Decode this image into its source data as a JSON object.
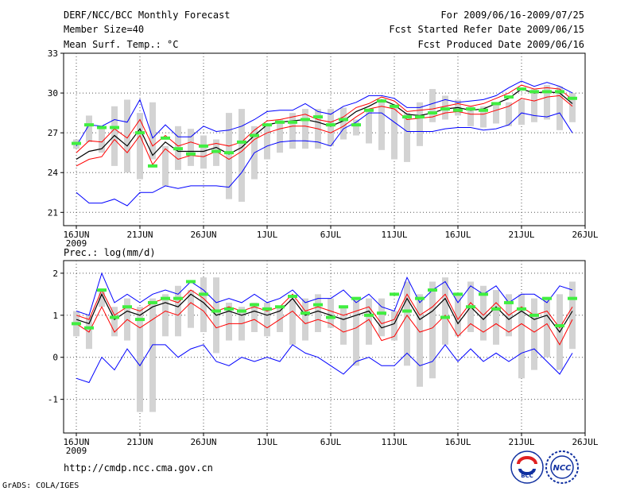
{
  "header": {
    "title": "DERF/NCC/BCC Monthly Forecast",
    "member_size": "Member Size=40",
    "variable": "Mean Surf. Temp.: °C",
    "period": "For 2009/06/16-2009/07/25",
    "fcst_started": "Fcst Started Refer Date 2009/06/15",
    "fcst_produced": "Fcst Produced Date 2009/06/16"
  },
  "footer": {
    "url": "http://cmdp.ncc.cma.gov.cn",
    "grads": "GrADS: COLA/IGES",
    "logo_bcc": "BCC",
    "logo_ncc": "NCC"
  },
  "colors": {
    "box": "#d3d3d3",
    "mean": "#000000",
    "inner": "#ff0000",
    "outer": "#0000ff",
    "obs": "#40ee40",
    "grid": "#555555"
  },
  "chart_data": [
    {
      "type": "line",
      "title": "Mean Surf. Temp.: °C",
      "x_tick_labels": [
        "16JUN",
        "21JUN",
        "26JUN",
        "1JUL",
        "6JUL",
        "11JUL",
        "16JUL",
        "21JUL",
        "26JUL"
      ],
      "x_year_label": "2009",
      "y_ticks": [
        21,
        24,
        27,
        30,
        33
      ],
      "ylim": [
        20,
        33
      ],
      "days": 40,
      "series": [
        {
          "name": "box_low",
          "values": [
            25.8,
            26.3,
            25.5,
            24.5,
            24.0,
            23.5,
            25.0,
            23.0,
            24.2,
            24.5,
            24.3,
            24.5,
            22.0,
            21.8,
            23.5,
            25.0,
            25.5,
            25.8,
            25.8,
            25.8,
            26.0,
            26.5,
            26.8,
            26.2,
            25.7,
            25.0,
            24.8,
            26.0,
            27.8,
            28.0,
            28.3,
            27.5,
            27.4,
            27.7,
            27.5,
            27.6,
            27.8,
            28.0,
            27.2,
            27.8
          ]
        },
        {
          "name": "box_high",
          "values": [
            26.5,
            28.3,
            27.5,
            29.0,
            29.5,
            28.5,
            29.3,
            26.0,
            27.5,
            27.3,
            26.8,
            26.5,
            28.5,
            28.8,
            27.5,
            27.5,
            28.0,
            28.5,
            28.8,
            28.8,
            28.8,
            28.9,
            28.0,
            28.8,
            29.3,
            29.0,
            28.5,
            29.3,
            30.3,
            29.8,
            29.5,
            29.0,
            29.0,
            29.3,
            29.3,
            29.5,
            30.3,
            30.6,
            30.5,
            30.0
          ]
        },
        {
          "name": "outer_low",
          "values": [
            22.5,
            21.7,
            21.7,
            22.0,
            21.5,
            22.5,
            22.5,
            23.0,
            22.8,
            23.0,
            23.0,
            23.0,
            22.9,
            24.0,
            25.5,
            26.0,
            26.3,
            26.4,
            26.4,
            26.3,
            26.0,
            27.3,
            27.8,
            28.5,
            28.5,
            27.8,
            27.1,
            27.1,
            27.1,
            27.3,
            27.4,
            27.4,
            27.2,
            27.3,
            27.6,
            28.5,
            28.3,
            28.2,
            28.5,
            27.0
          ]
        },
        {
          "name": "inner_low",
          "values": [
            24.5,
            25.0,
            25.2,
            26.5,
            25.5,
            26.8,
            24.6,
            25.8,
            25.0,
            25.3,
            25.2,
            25.6,
            25.0,
            25.6,
            26.5,
            27.0,
            27.3,
            27.5,
            27.5,
            27.3,
            27.0,
            27.5,
            28.2,
            28.8,
            29.0,
            28.8,
            28.0,
            28.1,
            28.2,
            28.5,
            28.6,
            28.4,
            28.4,
            28.7,
            29.0,
            29.6,
            29.4,
            29.7,
            29.8,
            29.0
          ]
        },
        {
          "name": "mean",
          "values": [
            25.0,
            25.6,
            25.8,
            26.8,
            26.0,
            27.3,
            25.3,
            26.3,
            25.6,
            25.6,
            25.6,
            25.9,
            25.4,
            25.9,
            26.8,
            27.6,
            27.8,
            27.9,
            28.0,
            27.8,
            27.5,
            27.9,
            28.6,
            29.0,
            29.5,
            29.1,
            28.4,
            28.3,
            28.5,
            28.8,
            28.9,
            28.7,
            28.8,
            29.2,
            29.6,
            30.3,
            30.0,
            30.1,
            30.0,
            29.2
          ]
        },
        {
          "name": "inner_high",
          "values": [
            25.5,
            26.4,
            26.3,
            27.3,
            26.6,
            28.0,
            26.0,
            26.8,
            26.0,
            26.3,
            26.0,
            26.2,
            26.0,
            26.3,
            27.2,
            27.9,
            28.0,
            28.2,
            28.4,
            28.0,
            27.8,
            28.2,
            28.9,
            29.2,
            29.7,
            29.4,
            28.6,
            28.7,
            28.8,
            29.0,
            29.2,
            29.0,
            29.2,
            29.6,
            30.0,
            30.6,
            30.3,
            30.4,
            30.3,
            29.5
          ]
        },
        {
          "name": "outer_high",
          "values": [
            26.0,
            27.6,
            27.5,
            28.0,
            27.8,
            29.5,
            26.6,
            27.6,
            26.7,
            26.7,
            27.5,
            27.1,
            27.2,
            27.5,
            28.0,
            28.6,
            28.7,
            28.7,
            29.2,
            28.6,
            28.4,
            29.0,
            29.3,
            29.8,
            29.8,
            29.6,
            28.9,
            28.9,
            29.2,
            29.5,
            29.3,
            29.4,
            29.5,
            29.8,
            30.4,
            30.9,
            30.5,
            30.8,
            30.5,
            30.0
          ]
        },
        {
          "name": "obs",
          "values": [
            26.2,
            27.6,
            27.4,
            27.4,
            null,
            27.0,
            24.5,
            26.6,
            25.8,
            25.4,
            26.0,
            25.6,
            25.5,
            26.3,
            26.8,
            27.6,
            27.8,
            27.8,
            28.0,
            28.2,
            27.6,
            28.0,
            27.6,
            28.7,
            29.4,
            29.0,
            28.2,
            28.2,
            28.5,
            28.8,
            28.7,
            28.8,
            28.7,
            29.2,
            29.7,
            30.3,
            30.1,
            30.1,
            30.1,
            29.6
          ]
        }
      ]
    },
    {
      "type": "line",
      "title": "Prec.: log(mm/d)",
      "x_tick_labels": [
        "16JUN",
        "21JUN",
        "26JUN",
        "1JUL",
        "6JUL",
        "11JUL",
        "16JUL",
        "21JUL",
        "26JUL"
      ],
      "x_year_label": "2009",
      "y_ticks": [
        -1,
        0,
        1,
        2
      ],
      "ylim": [
        -1.8,
        2.3
      ],
      "days": 40,
      "series": [
        {
          "name": "box_low",
          "values": [
            0.5,
            0.2,
            1.2,
            0.5,
            0.4,
            -1.3,
            -1.3,
            0.5,
            0.5,
            0.7,
            0.6,
            0.1,
            0.4,
            0.4,
            0.6,
            0.5,
            0.6,
            0.3,
            0.4,
            0.6,
            0.7,
            0.3,
            -0.2,
            0.3,
            0.5,
            0.4,
            -0.2,
            -0.7,
            -0.5,
            0.3,
            0.5,
            0.6,
            0.4,
            0.3,
            0.5,
            -0.5,
            -0.3,
            0.0,
            -0.3,
            0.2
          ]
        },
        {
          "name": "box_high",
          "values": [
            1.1,
            1.0,
            1.6,
            1.2,
            1.4,
            1.2,
            1.4,
            1.5,
            1.7,
            1.6,
            1.9,
            1.9,
            1.3,
            1.2,
            1.3,
            1.3,
            1.2,
            1.4,
            1.4,
            1.5,
            1.4,
            1.2,
            1.4,
            1.4,
            1.4,
            1.1,
            1.8,
            1.5,
            1.8,
            1.9,
            1.5,
            1.8,
            1.7,
            1.6,
            1.5,
            1.5,
            1.4,
            1.4,
            1.5,
            1.8
          ]
        },
        {
          "name": "outer_low",
          "values": [
            -0.5,
            -0.6,
            0.0,
            -0.3,
            0.2,
            -0.2,
            0.3,
            0.3,
            0.0,
            0.2,
            0.3,
            -0.1,
            -0.2,
            0.0,
            -0.1,
            0.0,
            -0.1,
            0.3,
            0.1,
            0.0,
            -0.2,
            -0.4,
            -0.1,
            0.0,
            -0.2,
            -0.2,
            0.1,
            -0.2,
            -0.1,
            0.3,
            -0.1,
            0.2,
            -0.1,
            0.1,
            -0.1,
            0.1,
            0.2,
            -0.1,
            -0.4,
            0.1
          ]
        },
        {
          "name": "inner_low",
          "values": [
            0.8,
            0.6,
            1.2,
            0.6,
            0.9,
            0.7,
            0.9,
            1.1,
            1.0,
            1.3,
            1.1,
            0.7,
            0.8,
            0.8,
            0.9,
            0.7,
            0.9,
            1.1,
            0.8,
            0.9,
            0.8,
            0.6,
            0.7,
            0.9,
            0.4,
            0.5,
            1.0,
            0.6,
            0.7,
            1.0,
            0.5,
            0.8,
            0.6,
            0.8,
            0.6,
            0.8,
            0.6,
            0.8,
            0.3,
            0.9
          ]
        },
        {
          "name": "mean",
          "values": [
            0.9,
            0.8,
            1.5,
            0.9,
            1.1,
            1.0,
            1.2,
            1.3,
            1.2,
            1.5,
            1.3,
            1.0,
            1.1,
            1.0,
            1.1,
            1.0,
            1.1,
            1.4,
            1.0,
            1.1,
            1.0,
            0.9,
            1.0,
            1.1,
            0.7,
            0.8,
            1.4,
            0.9,
            1.1,
            1.4,
            0.8,
            1.2,
            0.9,
            1.2,
            0.9,
            1.1,
            0.9,
            1.0,
            0.6,
            1.1
          ]
        },
        {
          "name": "inner_high",
          "values": [
            1.0,
            0.9,
            1.6,
            1.0,
            1.2,
            1.1,
            1.3,
            1.4,
            1.3,
            1.6,
            1.4,
            1.1,
            1.2,
            1.1,
            1.2,
            1.1,
            1.2,
            1.5,
            1.1,
            1.2,
            1.1,
            1.0,
            1.1,
            1.2,
            0.8,
            0.9,
            1.5,
            1.0,
            1.2,
            1.5,
            0.9,
            1.3,
            1.0,
            1.3,
            1.0,
            1.2,
            1.0,
            1.1,
            0.7,
            1.2
          ]
        },
        {
          "name": "outer_high",
          "values": [
            1.1,
            1.0,
            2.0,
            1.3,
            1.5,
            1.3,
            1.5,
            1.6,
            1.5,
            1.8,
            1.6,
            1.3,
            1.4,
            1.3,
            1.5,
            1.3,
            1.4,
            1.6,
            1.3,
            1.4,
            1.4,
            1.6,
            1.3,
            1.5,
            1.2,
            1.1,
            1.9,
            1.3,
            1.6,
            1.8,
            1.3,
            1.7,
            1.5,
            1.7,
            1.3,
            1.5,
            1.5,
            1.3,
            1.7,
            1.6
          ]
        },
        {
          "name": "obs",
          "values": [
            0.8,
            0.7,
            1.6,
            0.95,
            1.2,
            0.9,
            1.3,
            1.4,
            1.4,
            1.8,
            1.5,
            1.1,
            1.15,
            1.1,
            1.25,
            1.15,
            1.2,
            1.45,
            1.05,
            1.25,
            0.95,
            1.2,
            1.4,
            1.0,
            1.05,
            1.5,
            1.1,
            1.4,
            1.6,
            0.95,
            1.5,
            1.2,
            1.5,
            1.15,
            1.3,
            1.15,
            1.0,
            1.4,
            0.75,
            1.4
          ]
        }
      ]
    }
  ]
}
